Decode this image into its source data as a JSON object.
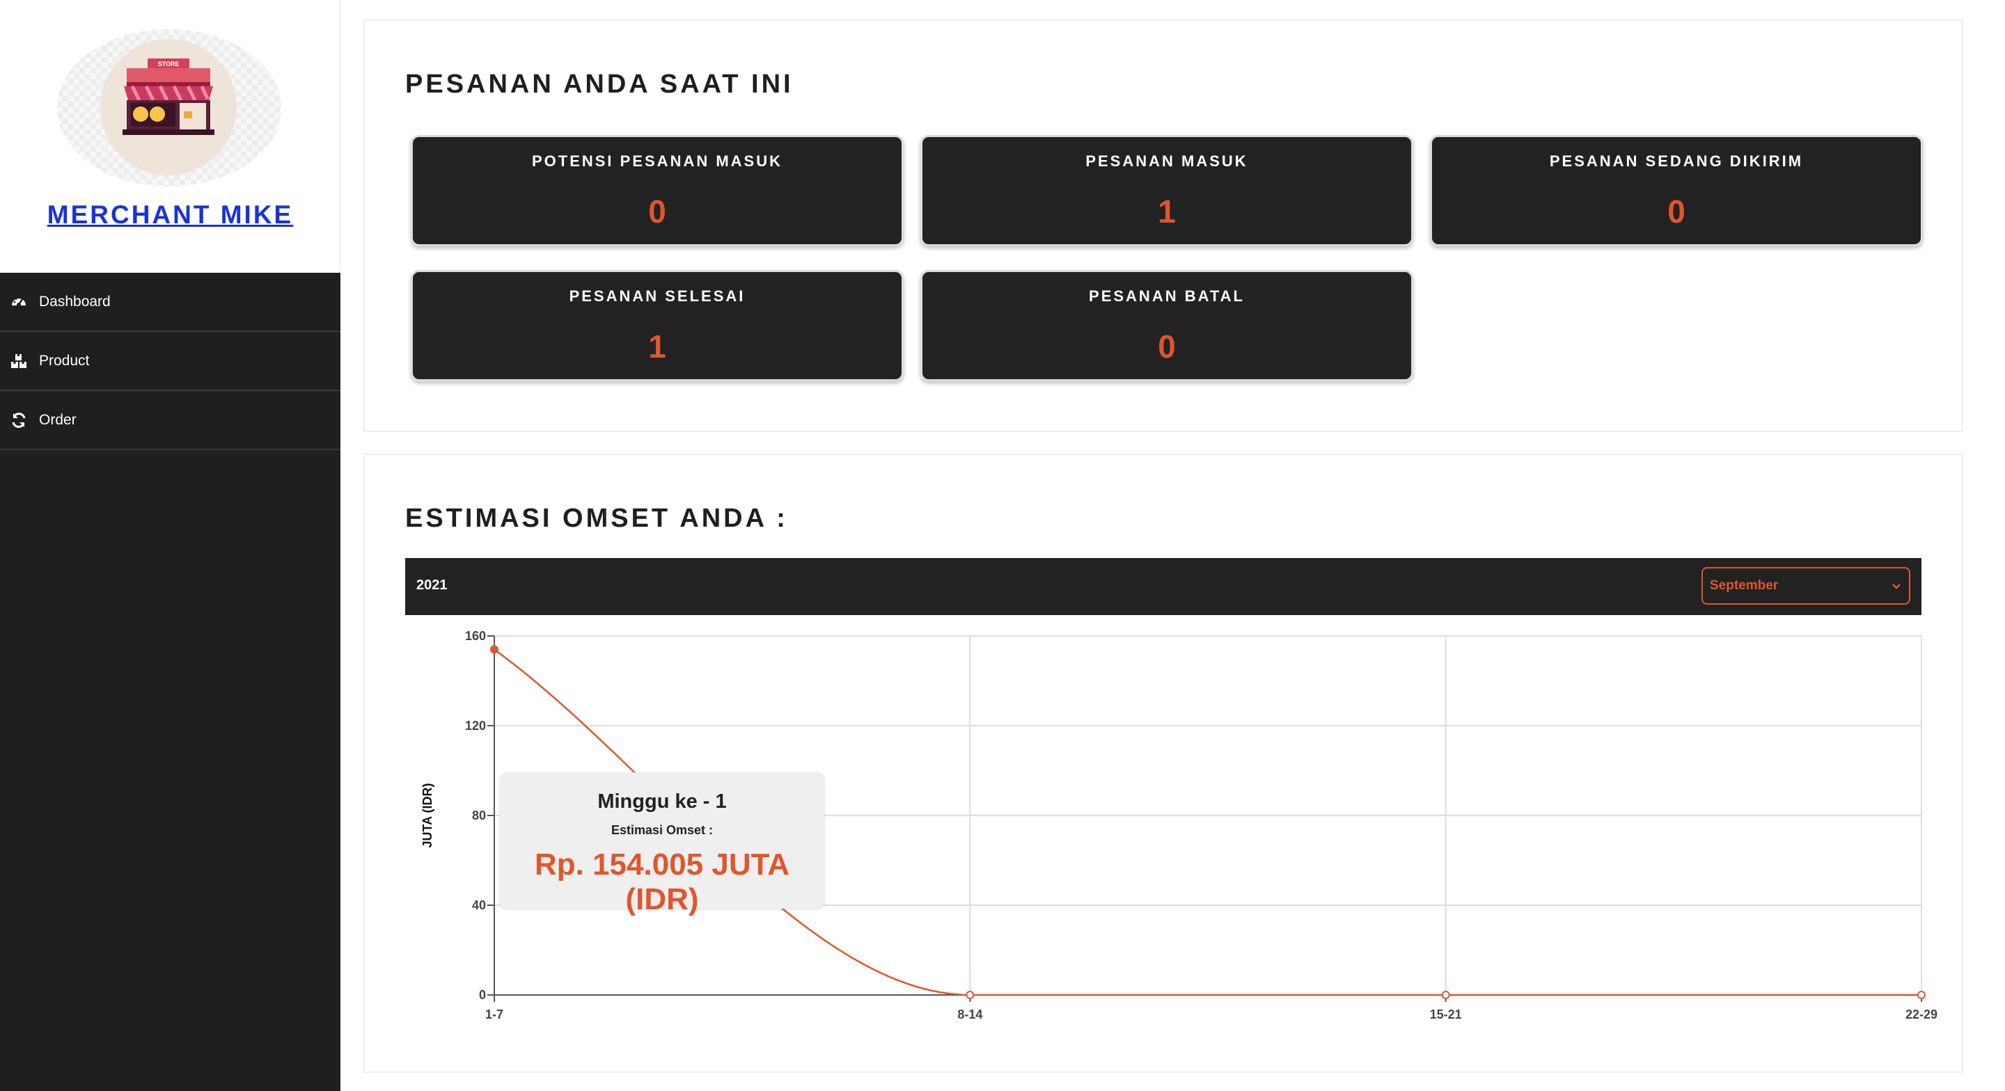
{
  "sidebar": {
    "store_name": "MERCHANT MIKE",
    "logo_sign": "STORE",
    "items": [
      {
        "label": "Dashboard",
        "icon": "dashboard-gauge-icon"
      },
      {
        "label": "Product",
        "icon": "boxes-icon"
      },
      {
        "label": "Order",
        "icon": "sync-icon"
      }
    ]
  },
  "orders": {
    "title": "PESANAN ANDA SAAT INI",
    "cards": [
      {
        "label": "POTENSI PESANAN MASUK",
        "value": "0"
      },
      {
        "label": "PESANAN MASUK",
        "value": "1"
      },
      {
        "label": "PESANAN SEDANG DIKIRIM",
        "value": "0"
      },
      {
        "label": "PESANAN SELESAI",
        "value": "1"
      },
      {
        "label": "PESANAN BATAL",
        "value": "0"
      }
    ]
  },
  "revenue": {
    "title": "ESTIMASI OMSET ANDA :",
    "year": "2021",
    "month_selected": "September",
    "tooltip": {
      "title": "Minggu ke - 1",
      "subtitle": "Estimasi Omset :",
      "value": "Rp. 154.005 JUTA (IDR)"
    }
  },
  "colors": {
    "accent": "#e0562c",
    "dark": "#222222",
    "link": "#1a33d8"
  },
  "chart_data": {
    "type": "line",
    "categories": [
      "1-7",
      "8-14",
      "15-21",
      "22-29"
    ],
    "values": [
      154.005,
      0,
      0,
      0
    ],
    "ylabel": "JUTA (IDR)",
    "xlabel": "",
    "ylim": [
      0,
      160
    ],
    "yticks": [
      0,
      40,
      80,
      120,
      160
    ],
    "grid": true
  }
}
